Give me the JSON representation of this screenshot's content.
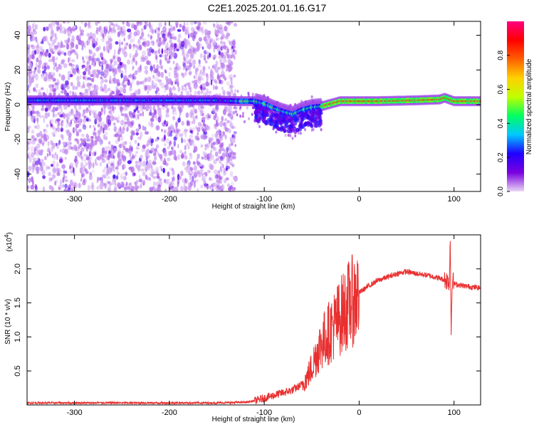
{
  "figure": {
    "title": "C2E1.2025.201.01.16.G17"
  },
  "chart_data": [
    {
      "type": "heatmap",
      "title": "",
      "xlabel": "Height of straight line (km)",
      "ylabel": "Frequency (Hz)",
      "xlim": [
        -350,
        128
      ],
      "ylim": [
        -50,
        48
      ],
      "xticks": [
        -300,
        -200,
        -100,
        0,
        100
      ],
      "yticks": [
        -40,
        -20,
        0,
        20,
        40
      ],
      "ridge": {
        "description_points_x": [
          -350,
          -250,
          -150,
          -125,
          -110,
          -100,
          -90,
          -80,
          -70,
          -60,
          -50,
          -40,
          -30,
          -20,
          -10,
          0,
          20,
          60,
          85,
          90,
          95,
          100,
          128
        ],
        "frequency_y": [
          2.5,
          2.5,
          2.5,
          2.0,
          2.0,
          0.5,
          -2.0,
          -4.0,
          -5.5,
          -3.0,
          -1.5,
          -1.0,
          0.5,
          2.0,
          2.0,
          2.0,
          2.0,
          2.5,
          3.0,
          4.0,
          3.0,
          2.0,
          2.0
        ]
      },
      "colorbar": {
        "label": "Normalized spectral amplitude",
        "ticks": [
          0.0,
          0.2,
          0.4,
          0.6,
          0.8
        ],
        "range": [
          0,
          1
        ],
        "colormap": [
          "#e8d6f5",
          "#7a00e0",
          "#2000ff",
          "#00c8ff",
          "#00ff60",
          "#c0ff00",
          "#ffd000",
          "#ff6000",
          "#ff0000",
          "#ff0080"
        ]
      }
    },
    {
      "type": "line",
      "title": "",
      "xlabel": "Height of straight line (km)",
      "ylabel": "SNR (10 * v/v)",
      "yscale_label": "(x10",
      "yscale_exp": "4",
      "yscale_close": ")",
      "xlim": [
        -350,
        128
      ],
      "ylim": [
        0,
        2.5
      ],
      "xticks": [
        -300,
        -200,
        -100,
        0,
        100
      ],
      "yticks": [
        0.5,
        1.0,
        1.5,
        2.0
      ],
      "ytick_labels": [
        "0.5",
        "1.0",
        "1.5",
        "2.0"
      ],
      "color": "#e83030",
      "series": [
        {
          "x": [
            -350,
            -300,
            -250,
            -200,
            -150,
            -120,
            -110,
            -100,
            -90,
            -80,
            -70,
            -60,
            -55,
            -50,
            -45,
            -40,
            -35,
            -30,
            -25,
            -20,
            -15,
            -10,
            -5,
            0,
            10,
            20,
            30,
            40,
            50,
            60,
            70,
            80,
            90,
            95,
            96,
            97,
            98,
            100,
            110,
            120,
            128
          ],
          "y": [
            0.03,
            0.03,
            0.03,
            0.03,
            0.03,
            0.04,
            0.06,
            0.1,
            0.14,
            0.18,
            0.22,
            0.3,
            0.4,
            0.55,
            0.75,
            0.9,
            1.0,
            1.1,
            1.2,
            1.3,
            1.4,
            1.5,
            1.55,
            1.65,
            1.75,
            1.83,
            1.88,
            1.93,
            1.96,
            1.93,
            1.91,
            1.88,
            1.84,
            1.82,
            2.45,
            1.05,
            1.85,
            1.78,
            1.75,
            1.73,
            1.72
          ]
        }
      ]
    }
  ]
}
